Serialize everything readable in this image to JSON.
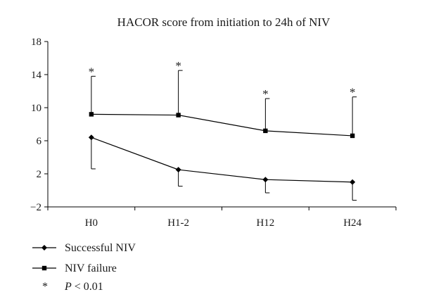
{
  "chart_data": {
    "type": "line",
    "title": "HACOR score from initiation to 24h of NIV",
    "xlabel": "",
    "ylabel": "",
    "categories": [
      "H0",
      "H1-2",
      "H12",
      "H24"
    ],
    "ylim": [
      -2,
      18
    ],
    "yticks": [
      -2,
      2,
      6,
      10,
      14,
      18
    ],
    "ytick_labels": [
      "−2",
      "2",
      "6",
      "10",
      "14",
      "18"
    ],
    "series": [
      {
        "name": "Successful NIV",
        "marker": "diamond",
        "values": [
          6.4,
          2.5,
          1.3,
          1.0
        ],
        "error_down": [
          3.8,
          2.0,
          1.6,
          2.2
        ]
      },
      {
        "name": "NIV failure",
        "marker": "square",
        "values": [
          9.2,
          9.1,
          7.2,
          6.6
        ],
        "error_up": [
          4.6,
          5.4,
          3.9,
          4.7
        ],
        "significance": [
          "*",
          "*",
          "*",
          "*"
        ]
      }
    ],
    "legend_position": "bottom-left",
    "footnote": {
      "symbol": "*",
      "italic": "P",
      "text": " < 0.01"
    },
    "grid": false
  }
}
